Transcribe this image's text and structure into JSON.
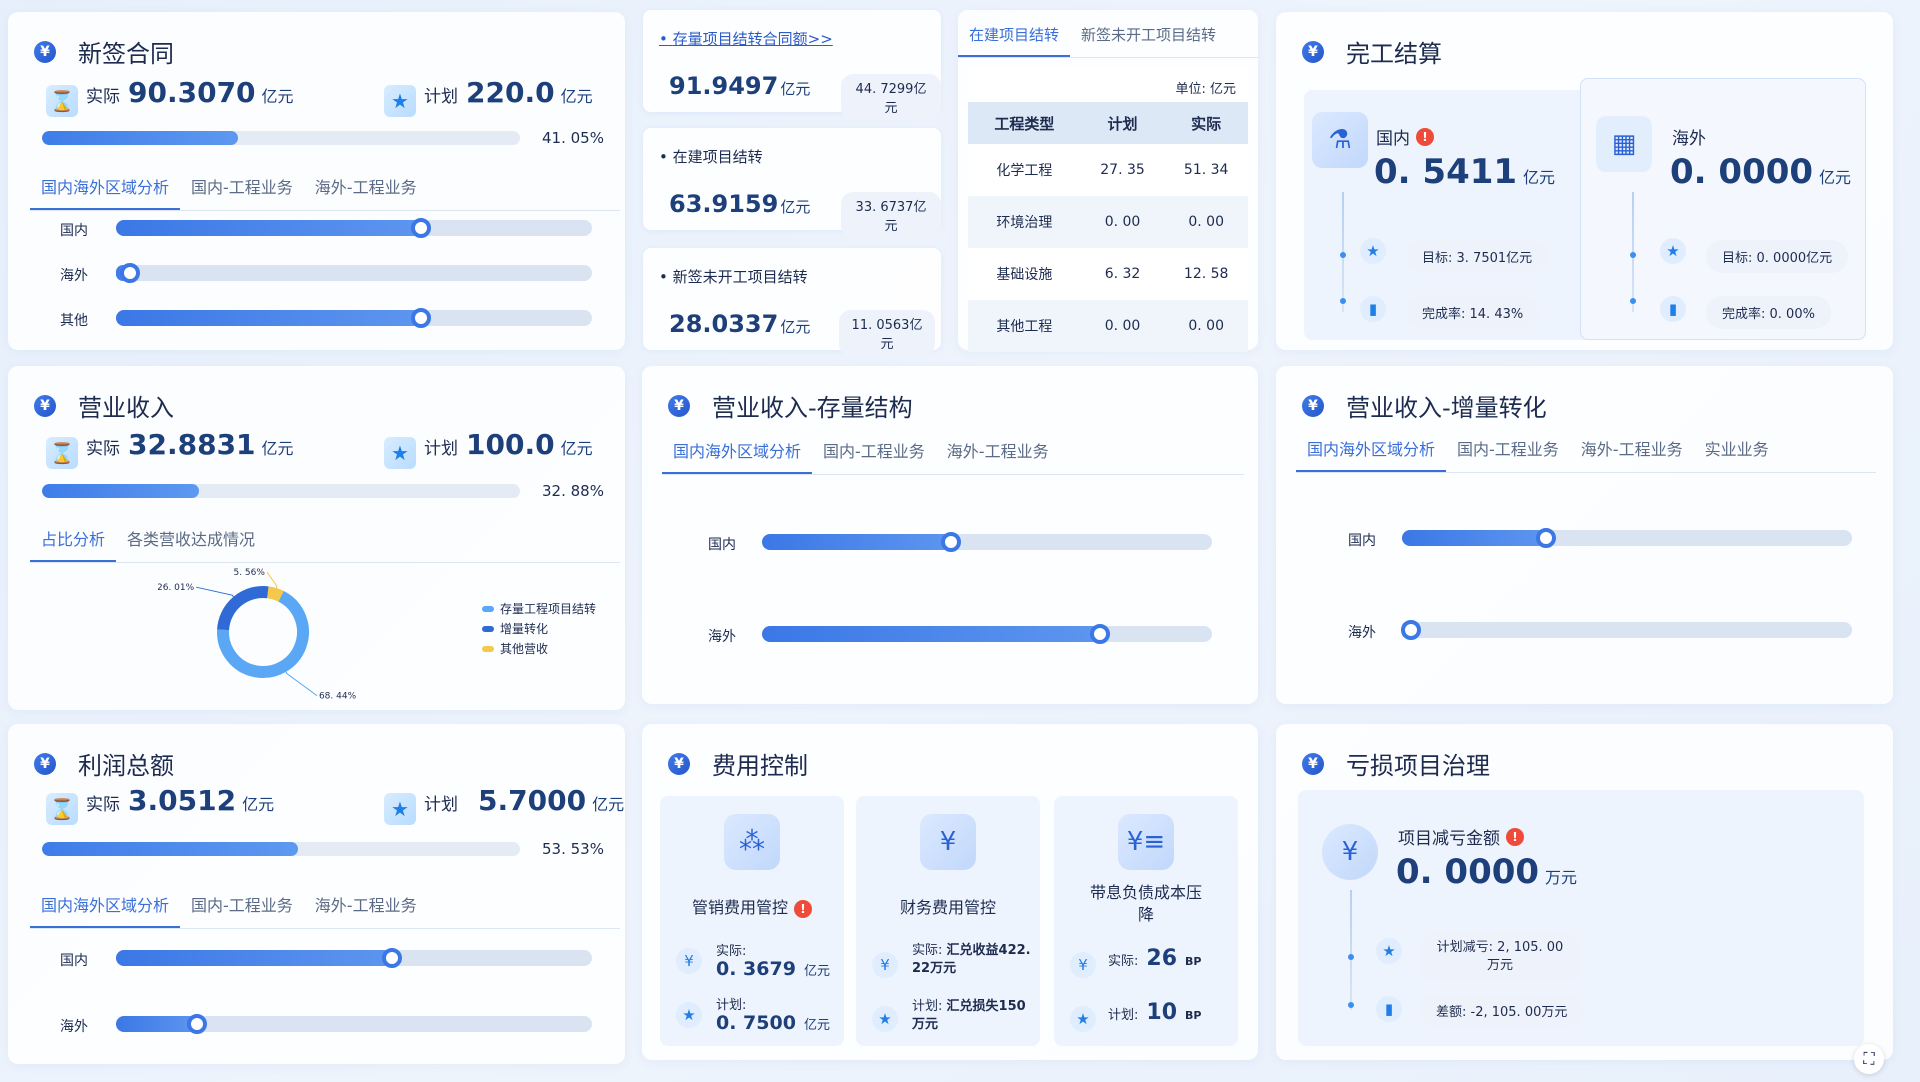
{
  "contract": {
    "title": "新签合同",
    "actual_label": "实际",
    "actual_value": "90.3070",
    "unit": "亿元",
    "plan_label": "计划",
    "plan_value": "220.0",
    "percent_text": "41. 05%",
    "percent": 41.05,
    "tabs": [
      "国内海外区域分析",
      "国内-工程业务",
      "海外-工程业务"
    ],
    "rows": [
      {
        "label": "国内",
        "value": 0.64
      },
      {
        "label": "海外",
        "value": 0.03
      },
      {
        "label": "其他",
        "value": 0.64
      }
    ]
  },
  "stock": {
    "link": "存量项目结转合同额>>",
    "value1": "91.9497",
    "unit1": "亿元",
    "sub1": "44. 7299亿元",
    "title2": "在建项目结转",
    "value2": "63.9159",
    "unit2": "亿元",
    "sub2": "33. 6737亿元",
    "title3": "新签未开工项目结转",
    "value3": "28.0337",
    "unit3": "亿元",
    "sub3": "11. 0563亿元"
  },
  "table": {
    "tabs": [
      "在建项目结转",
      "新签未开工项目结转"
    ],
    "unit_note": "单位: 亿元",
    "headers": [
      "工程类型",
      "计划",
      "实际"
    ],
    "rows": [
      [
        "化学工程",
        "27. 35",
        "51. 34"
      ],
      [
        "环境治理",
        "0. 00",
        "0. 00"
      ],
      [
        "基础设施",
        "6. 32",
        "12. 58"
      ],
      [
        "其他工程",
        "0. 00",
        "0. 00"
      ]
    ]
  },
  "settlement": {
    "title": "完工结算",
    "domestic": {
      "label": "国内",
      "value": "0. 5411",
      "unit": "亿元",
      "target": "目标: 3. 7501亿元",
      "rate": "完成率: 14. 43%"
    },
    "overseas": {
      "label": "海外",
      "value": "0. 0000",
      "unit": "亿元",
      "target": "目标: 0. 0000亿元",
      "rate": "完成率: 0. 00%"
    }
  },
  "revenue": {
    "title": "营业收入",
    "actual_label": "实际",
    "actual_value": "32.8831",
    "unit": "亿元",
    "plan_label": "计划",
    "plan_value": "100.0",
    "percent_text": "32. 88%",
    "percent": 32.88,
    "tabs": [
      "占比分析",
      "各类营收达成情况"
    ],
    "legend": [
      "存量工程项目结转",
      "增量转化",
      "其他营收"
    ]
  },
  "chart_data": {
    "type": "pie",
    "categories": [
      "存量工程项目结转",
      "增量转化",
      "其他营收"
    ],
    "values": [
      68.44,
      26.01,
      5.56
    ],
    "labels": [
      "68. 44%",
      "26. 01%",
      "5. 56%"
    ],
    "colors": [
      "#5aa8f5",
      "#2f6ad6",
      "#f3c94b"
    ],
    "title": ""
  },
  "revenue_stock": {
    "title": "营业收入-存量结构",
    "tabs": [
      "国内海外区域分析",
      "国内-工程业务",
      "海外-工程业务"
    ],
    "rows": [
      {
        "label": "国内",
        "value": 0.42
      },
      {
        "label": "海外",
        "value": 0.75
      }
    ]
  },
  "revenue_inc": {
    "title": "营业收入-增量转化",
    "tabs": [
      "国内海外区域分析",
      "国内-工程业务",
      "海外-工程业务",
      "实业业务"
    ],
    "rows": [
      {
        "label": "国内",
        "value": 0.32
      },
      {
        "label": "海外",
        "value": 0.02
      }
    ]
  },
  "profit": {
    "title": "利润总额",
    "actual_label": "实际",
    "actual_value": "3.0512",
    "unit": "亿元",
    "plan_label": "计划",
    "plan_value": "5.7000",
    "percent_text": "53. 53%",
    "percent": 53.53,
    "tabs": [
      "国内海外区域分析",
      "国内-工程业务",
      "海外-工程业务"
    ],
    "rows": [
      {
        "label": "国内",
        "value": 0.58
      },
      {
        "label": "海外",
        "value": 0.17
      }
    ]
  },
  "cost": {
    "title": "费用控制",
    "c1": {
      "title": "管销费用管控",
      "actual_label": "实际:",
      "actual": "0. 3679",
      "plan_label": "计划:",
      "plan": "0. 7500",
      "unit": "亿元"
    },
    "c2": {
      "title": "财务费用管控",
      "actual_label": "实际:",
      "actual": "汇兑收益422. 22万元",
      "plan_label": "计划:",
      "plan": "汇兑损失150万元"
    },
    "c3": {
      "title": "带息负债成本压降",
      "actual_label": "实际:",
      "actual": "26",
      "plan_label": "计划:",
      "plan": "10",
      "unit": "BP"
    }
  },
  "loss": {
    "title": "亏损项目治理",
    "label": "项目减亏金额",
    "value": "0. 0000",
    "unit": "万元",
    "plan": "计划减亏: 2, 105. 00 万元",
    "diff": "差额: -2, 105. 00万元"
  }
}
